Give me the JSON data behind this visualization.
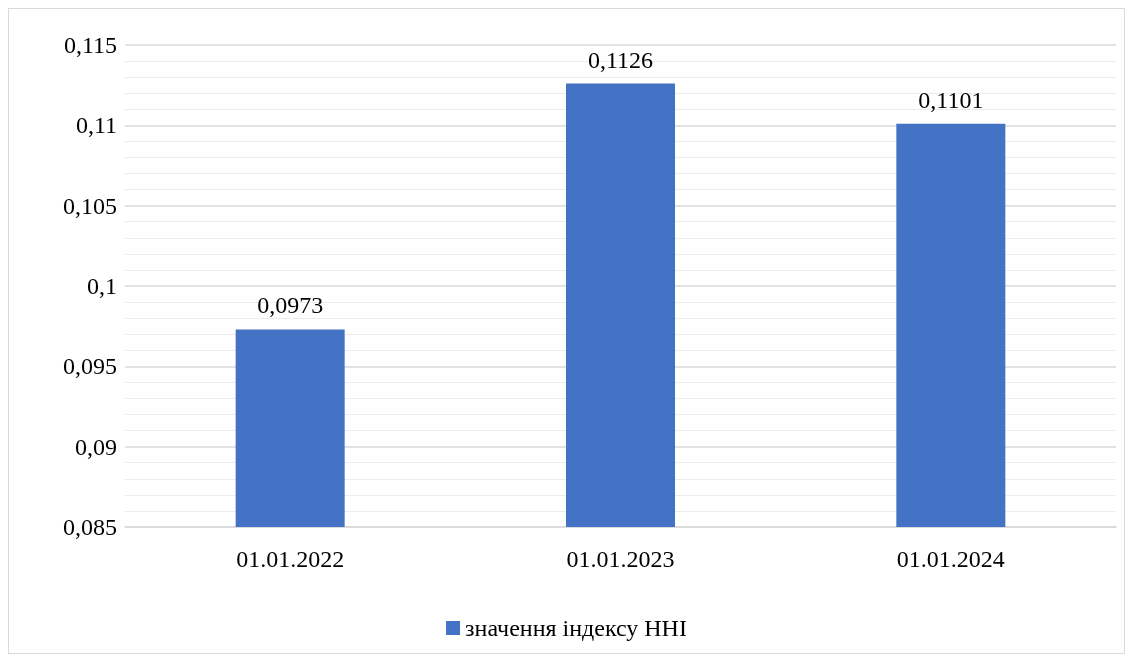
{
  "chart_data": {
    "type": "bar",
    "categories": [
      "01.01.2022",
      "01.01.2023",
      "01.01.2024"
    ],
    "series": [
      {
        "name": "значення індексу HHI",
        "color": "#4472c4",
        "values": [
          0.0973,
          0.1126,
          0.1101
        ],
        "value_labels": [
          "0,0973",
          "0,1126",
          "0,1101"
        ]
      }
    ],
    "ylim": [
      0.085,
      0.115
    ],
    "yticks": [
      {
        "value": 0.085,
        "label": "0,085"
      },
      {
        "value": 0.09,
        "label": "0,09"
      },
      {
        "value": 0.095,
        "label": "0,095"
      },
      {
        "value": 0.1,
        "label": "0,1"
      },
      {
        "value": 0.105,
        "label": "0,105"
      },
      {
        "value": 0.11,
        "label": "0,11"
      },
      {
        "value": 0.115,
        "label": "0,115"
      }
    ],
    "grid": "y",
    "legend": "bottom"
  }
}
